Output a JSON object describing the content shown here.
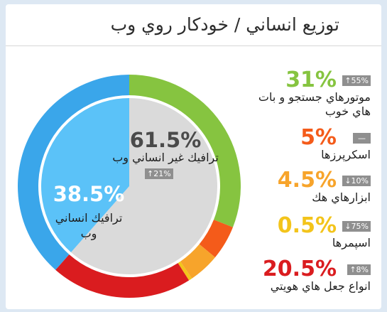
{
  "colors": {
    "search": "#86c440",
    "scrapers": "#f45b1a",
    "hacking": "#f7a42b",
    "spammers": "#f3c41b",
    "impersonators": "#da1c1f",
    "human": "#5bc2f8",
    "human_ring": "#3aa6ea",
    "nonhuman": "#dadada",
    "chip": "#8f8f8f"
  },
  "chart_data": {
    "type": "pie",
    "title": "توزيع انساني / خودكار روي وب",
    "inner": [
      {
        "label": "ترافيك انساني وب",
        "value": 38.5,
        "value_text": "38.5%"
      },
      {
        "label": "ترافيك غير انساني وب",
        "value": 61.5,
        "value_text": "61.5%",
        "change": "↑21%"
      }
    ],
    "outer": [
      {
        "label": "موتورهاي جستجو و بات هاي خوب",
        "value": 31,
        "value_text": "31%",
        "change": "↑55%"
      },
      {
        "label": "اسكرپرزها",
        "value": 5,
        "value_text": "5%",
        "change": "—"
      },
      {
        "label": "ابزارهاي هك",
        "value": 4.5,
        "value_text": "4.5%",
        "change": "↓10%"
      },
      {
        "label": "اسپمرها",
        "value": 0.5,
        "value_text": "0.5%",
        "change": "↓75%"
      },
      {
        "label": "انواع جعل هاي هويتي",
        "value": 20.5,
        "value_text": "20.5%",
        "change": "↑8%"
      },
      {
        "label": "ترافيك انساني وب",
        "value": 38.5
      }
    ]
  }
}
